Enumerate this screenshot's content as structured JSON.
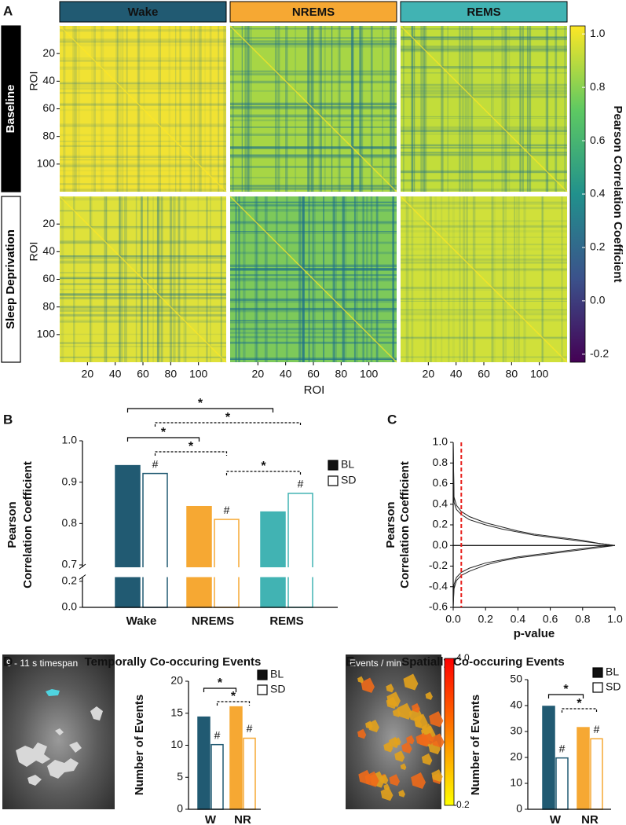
{
  "chart_data": [
    {
      "panel": "A",
      "type": "heatmap",
      "columns": [
        "Wake",
        "NREMS",
        "REMS"
      ],
      "column_colors": [
        "#215a72",
        "#f6a833",
        "#41b3b3"
      ],
      "rows": [
        "Baseline",
        "Sleep Deprivation"
      ],
      "cell_colors": [
        [
          "#f1e233",
          "#a7d645",
          "#c2dd3a"
        ],
        [
          "#dfe13a",
          "#7dc95a",
          "#d0e03a"
        ]
      ],
      "xlabel": "ROI",
      "ylabel": "ROI",
      "xlim": [
        0,
        120
      ],
      "ylim": [
        0,
        120
      ],
      "xticks": [
        20,
        40,
        60,
        80,
        100
      ],
      "yticks": [
        20,
        40,
        60,
        80,
        100
      ],
      "colorbar_label": "Pearson Correlation Coefficient",
      "clim": [
        -0.23,
        1.03
      ],
      "cticks": [
        {
          "value": 1,
          "label": "1.0"
        },
        0.8,
        0.6,
        0.4,
        0.2,
        {
          "value": 0,
          "label": "0.0"
        },
        -0.2
      ]
    },
    {
      "panel": "B",
      "type": "bar",
      "categories": [
        "Wake",
        "NREMS",
        "REMS"
      ],
      "category_colors": [
        "#215a72",
        "#f6a833",
        "#41b3b3"
      ],
      "series": [
        {
          "name": "BL",
          "color": "#111111",
          "values": [
            0.94,
            0.841,
            0.828
          ]
        },
        {
          "name": "SD",
          "color": "#ffffff",
          "values": [
            0.921,
            0.81,
            0.873
          ],
          "flags": [
            "#",
            "#",
            "#"
          ]
        }
      ],
      "ylabel": [
        "Pearson",
        "Correlation Coefficient"
      ],
      "ylim": [
        0,
        1
      ],
      "ybreak": [
        0.22,
        0.7
      ],
      "yticks": [
        {
          "value": 0,
          "label": "0.0"
        },
        0.2,
        0.7,
        0.8,
        0.9,
        {
          "value": 1,
          "label": "1.0"
        }
      ],
      "significance": [
        {
          "from": "Wake",
          "to": "REMS",
          "series": "BL",
          "label": "*",
          "style": "solid"
        },
        {
          "from": "Wake",
          "to": "REMS",
          "series": "SD",
          "label": "*",
          "style": "dashed"
        },
        {
          "from": "Wake",
          "to": "NREMS",
          "series": "BL",
          "label": "*",
          "style": "solid"
        },
        {
          "from": "Wake",
          "to": "NREMS",
          "series": "SD",
          "label": "*",
          "style": "dashed"
        },
        {
          "from": "NREMS",
          "to": "REMS",
          "series": "SD",
          "label": "*",
          "style": "dashed"
        }
      ]
    },
    {
      "panel": "C",
      "type": "line",
      "x": [
        0,
        0.005,
        0.02,
        0.05,
        0.1,
        0.2,
        0.3,
        0.4,
        0.5,
        0.6,
        0.7,
        0.8,
        0.9,
        1
      ],
      "series": [
        {
          "color": "#222222",
          "values": [
            1,
            0.42,
            0.35,
            0.3,
            0.25,
            0.2,
            0.16,
            0.13,
            0.1,
            0.08,
            0.06,
            0.04,
            0.02,
            0
          ]
        },
        {
          "color": "#222222",
          "values": [
            1,
            0.47,
            0.39,
            0.33,
            0.28,
            0.22,
            0.18,
            0.14,
            0.11,
            0.09,
            0.07,
            0.05,
            0.02,
            0
          ]
        },
        {
          "color": "#222222",
          "values": [
            -0.6,
            -0.42,
            -0.34,
            -0.29,
            -0.25,
            -0.19,
            -0.15,
            -0.12,
            -0.1,
            -0.08,
            -0.06,
            -0.04,
            -0.02,
            0
          ]
        },
        {
          "color": "#222222",
          "values": [
            -0.6,
            -0.38,
            -0.31,
            -0.26,
            -0.22,
            -0.17,
            -0.14,
            -0.11,
            -0.09,
            -0.07,
            -0.05,
            -0.03,
            -0.01,
            0
          ]
        }
      ],
      "xlim": [
        0,
        1
      ],
      "ylim": [
        -0.6,
        1
      ],
      "xticks": [
        {
          "value": 0,
          "label": "0.0"
        },
        0.2,
        0.4,
        0.6,
        0.8,
        {
          "value": 1,
          "label": "1.0"
        }
      ],
      "yticks": [
        -0.6,
        -0.4,
        -0.2,
        {
          "value": 0,
          "label": "0.0"
        },
        0.2,
        0.4,
        0.6,
        0.8,
        {
          "value": 1,
          "label": "1.0"
        }
      ],
      "xlabel": "p-value",
      "ylabel": [
        "Pearson",
        "Correlation Coefficient"
      ],
      "threshold": 0.05,
      "threshold_color": "#e8201c"
    },
    {
      "panel": "D",
      "type": "bar",
      "title": "Temporally Co-occuring Events",
      "image_label": "9 - 11 s timespan",
      "categories": [
        "W",
        "NR"
      ],
      "category_colors": [
        "#215a72",
        "#f6a833"
      ],
      "series": [
        {
          "name": "BL",
          "color": "#111111",
          "values": [
            14.4,
            16.0
          ]
        },
        {
          "name": "SD",
          "color": "#ffffff",
          "values": [
            10.1,
            11.1
          ],
          "flags": [
            "#",
            "#"
          ]
        }
      ],
      "ylabel": [
        "Number of Events"
      ],
      "ylim": [
        0,
        20
      ],
      "yticks": [
        0,
        5,
        10,
        15,
        20
      ],
      "significance": [
        {
          "from": "W",
          "to": "NR",
          "series": "BL",
          "label": "*",
          "style": "solid"
        },
        {
          "from": "W",
          "to": "NR",
          "series": "SD",
          "label": "*",
          "style": "dashed"
        }
      ]
    },
    {
      "panel": "E",
      "type": "bar",
      "title": "Spatially Co-occuring Events",
      "image_label": "Events / min",
      "clim": [
        0.2,
        4
      ],
      "colorbar_colors": [
        "#ffff00",
        "#ff0000"
      ],
      "colorbar_ticks": [
        {
          "value": 4,
          "label": "4.0"
        },
        0.2
      ],
      "categories": [
        "W",
        "NR"
      ],
      "category_colors": [
        "#215a72",
        "#f6a833"
      ],
      "series": [
        {
          "name": "BL",
          "color": "#111111",
          "values": [
            39.7,
            31.5
          ]
        },
        {
          "name": "SD",
          "color": "#ffffff",
          "values": [
            19.8,
            27.2
          ],
          "flags": [
            "#",
            "#"
          ]
        }
      ],
      "ylabel": [
        "Number of Events"
      ],
      "ylim": [
        0,
        50
      ],
      "yticks": [
        0,
        10,
        20,
        30,
        40,
        50
      ],
      "significance": [
        {
          "from": "W",
          "to": "NR",
          "series": "BL",
          "label": "*",
          "style": "solid"
        },
        {
          "from": "W",
          "to": "NR",
          "series": "SD",
          "label": "*",
          "style": "dashed"
        }
      ]
    }
  ]
}
